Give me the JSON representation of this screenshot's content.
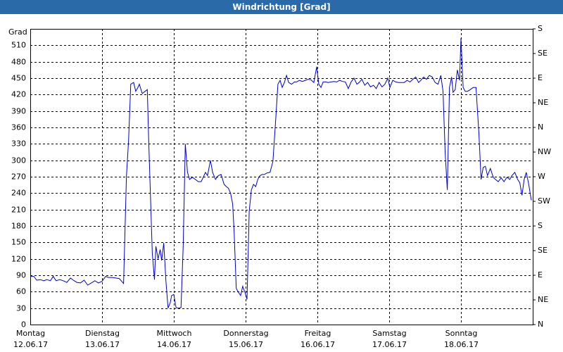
{
  "chart_data": {
    "type": "line",
    "title": "Windrichtung [Grad]",
    "ylabel": "Grad",
    "xlim": [
      0,
      7
    ],
    "xticks": [
      {
        "value": 0,
        "label": "Montag"
      },
      {
        "value": 1,
        "label": "Dienstag"
      },
      {
        "value": 2,
        "label": "Mittwoch"
      },
      {
        "value": 3,
        "label": "Donnerstag"
      },
      {
        "value": 4,
        "label": "Freitag"
      },
      {
        "value": 5,
        "label": "Samstag"
      },
      {
        "value": 6,
        "label": "Sonntag"
      }
    ],
    "xtick_dates": [
      "12.06.17",
      "13.06.17",
      "14.06.17",
      "15.06.17",
      "16.06.17",
      "17.06.17",
      "18.06.17"
    ],
    "ylim": [
      0,
      540
    ],
    "yticks": [
      0,
      30,
      60,
      90,
      120,
      150,
      180,
      210,
      240,
      270,
      300,
      330,
      360,
      390,
      420,
      450,
      480,
      510
    ],
    "y2lim": [
      0,
      540
    ],
    "y2ticks": [
      {
        "value": 0,
        "label": "N"
      },
      {
        "value": 45,
        "label": "NE"
      },
      {
        "value": 90,
        "label": "E"
      },
      {
        "value": 135,
        "label": "SE"
      },
      {
        "value": 180,
        "label": "S"
      },
      {
        "value": 225,
        "label": "SW"
      },
      {
        "value": 270,
        "label": "W"
      },
      {
        "value": 315,
        "label": "NW"
      },
      {
        "value": 360,
        "label": "N"
      },
      {
        "value": 405,
        "label": "NE"
      },
      {
        "value": 450,
        "label": "E"
      },
      {
        "value": 495,
        "label": "SE"
      },
      {
        "value": 540,
        "label": "S"
      }
    ],
    "grid": true,
    "color": "#0000cc",
    "x": [
      0,
      0.05,
      0.09,
      0.14,
      0.19,
      0.23,
      0.28,
      0.32,
      0.36,
      0.41,
      0.46,
      0.51,
      0.56,
      0.6,
      0.65,
      0.7,
      0.75,
      0.8,
      0.85,
      0.9,
      0.95,
      1,
      1.05,
      1.09,
      1.14,
      1.19,
      1.24,
      1.3,
      1.34,
      1.37,
      1.4,
      1.44,
      1.47,
      1.5,
      1.52,
      1.56,
      1.6,
      1.63,
      1.65,
      1.7,
      1.73,
      1.75,
      1.78,
      1.81,
      1.83,
      1.86,
      1.89,
      1.92,
      1.95,
      1.97,
      2,
      2.03,
      2.06,
      2.1,
      2.13,
      2.16,
      2.19,
      2.22,
      2.26,
      2.3,
      2.34,
      2.38,
      2.41,
      2.44,
      2.47,
      2.51,
      2.54,
      2.58,
      2.62,
      2.66,
      2.7,
      2.73,
      2.76,
      2.79,
      2.82,
      2.84,
      2.87,
      2.9,
      2.93,
      2.96,
      2.99,
      3.02,
      3.05,
      3.08,
      3.11,
      3.14,
      3.17,
      3.2,
      3.23,
      3.26,
      3.3,
      3.34,
      3.38,
      3.42,
      3.45,
      3.48,
      3.51,
      3.54,
      3.57,
      3.6,
      3.64,
      3.68,
      3.71,
      3.75,
      3.79,
      3.83,
      3.87,
      3.91,
      3.95,
      3.99,
      4.02,
      4.05,
      4.08,
      4.12,
      4.15,
      4.19,
      4.23,
      4.27,
      4.31,
      4.35,
      4.39,
      4.43,
      4.47,
      4.51,
      4.55,
      4.58,
      4.62,
      4.66,
      4.7,
      4.74,
      4.78,
      4.82,
      4.86,
      4.9,
      4.94,
      4.98,
      5.01,
      5.05,
      5.09,
      5.13,
      5.17,
      5.21,
      5.25,
      5.29,
      5.33,
      5.37,
      5.41,
      5.44,
      5.48,
      5.52,
      5.56,
      5.6,
      5.64,
      5.68,
      5.72,
      5.75,
      5.78,
      5.81,
      5.84,
      5.87,
      5.89,
      5.92,
      5.95,
      5.98,
      6,
      6.03,
      6.06,
      6.09,
      6.13,
      6.17,
      6.21,
      6.25,
      6.28,
      6.31,
      6.34,
      6.37,
      6.41,
      6.45,
      6.48,
      6.52,
      6.56,
      6.6,
      6.64,
      6.68,
      6.71,
      6.75,
      6.79,
      6.82,
      6.85,
      6.88,
      6.91,
      6.94,
      6.98
    ],
    "values": [
      88,
      88,
      81,
      82,
      80,
      82,
      80,
      88,
      80,
      82,
      80,
      77,
      85,
      81,
      77,
      76,
      81,
      72,
      76,
      80,
      76,
      79,
      88,
      86,
      86,
      85,
      84,
      75,
      272,
      336,
      439,
      442,
      426,
      433,
      439,
      422,
      426,
      429,
      336,
      130,
      82,
      143,
      120,
      137,
      117,
      149,
      79,
      30,
      40,
      53,
      55,
      31,
      30,
      31,
      143,
      330,
      278,
      265,
      269,
      265,
      261,
      261,
      269,
      278,
      272,
      300,
      278,
      265,
      272,
      274,
      256,
      252,
      249,
      240,
      220,
      169,
      66,
      59,
      53,
      70,
      59,
      46,
      207,
      246,
      256,
      252,
      265,
      272,
      274,
      274,
      277,
      278,
      298,
      375,
      439,
      446,
      433,
      442,
      455,
      442,
      439,
      443,
      443,
      446,
      444,
      446,
      448,
      447,
      442,
      471,
      439,
      433,
      443,
      443,
      442,
      443,
      444,
      443,
      446,
      444,
      443,
      431,
      443,
      450,
      439,
      442,
      448,
      437,
      442,
      434,
      437,
      431,
      442,
      434,
      439,
      450,
      433,
      446,
      443,
      442,
      442,
      442,
      446,
      443,
      448,
      452,
      442,
      446,
      452,
      448,
      455,
      452,
      442,
      439,
      455,
      426,
      313,
      246,
      433,
      452,
      424,
      429,
      465,
      446,
      523,
      433,
      426,
      426,
      429,
      433,
      433,
      349,
      265,
      287,
      289,
      272,
      285,
      269,
      265,
      261,
      268,
      261,
      269,
      265,
      272,
      278,
      265,
      259,
      236,
      265,
      278,
      259,
      227
    ]
  }
}
